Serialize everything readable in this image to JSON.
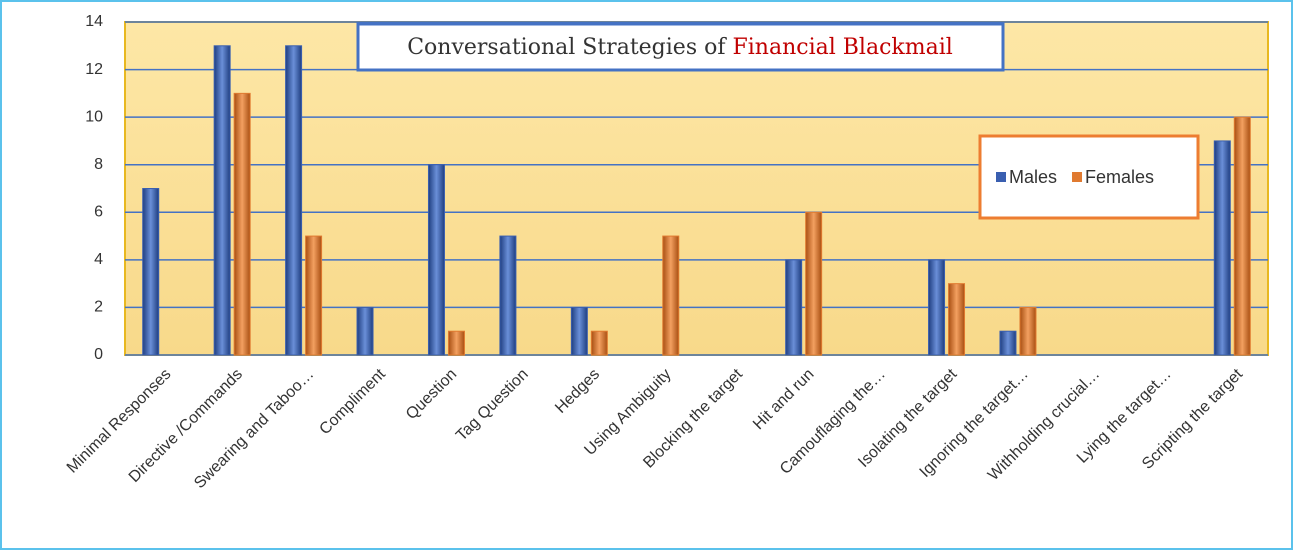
{
  "chart_data": {
    "type": "bar",
    "title": "Conversational Strategies of",
    "title_highlight": "Financial Blackmail",
    "categories": [
      "Minimal Responses",
      "Directive /Commands",
      "Swearing and Taboo…",
      "Compliment",
      "Question",
      "Tag Question",
      "Hedges",
      "Using Ambiguity",
      "Blocking the target",
      "Hit and run",
      "Camouflaging the…",
      "Isolating the target",
      "Ignoring the target…",
      "Withholding crucial…",
      "Lying the target…",
      "Scripting the target"
    ],
    "series": [
      {
        "name": "Males",
        "color": "#3a5fb0",
        "values": [
          7,
          13,
          13,
          2,
          8,
          5,
          2,
          0,
          0,
          4,
          0,
          4,
          1,
          0,
          0,
          9
        ]
      },
      {
        "name": "Females",
        "color": "#e07a30",
        "values": [
          0,
          11,
          5,
          0,
          1,
          0,
          1,
          5,
          0,
          6,
          0,
          3,
          2,
          0,
          0,
          10
        ]
      }
    ],
    "ylim": [
      0,
      14
    ],
    "yticks": [
      0,
      2,
      4,
      6,
      8,
      10,
      12,
      14
    ],
    "grid": true,
    "legend": "right"
  }
}
